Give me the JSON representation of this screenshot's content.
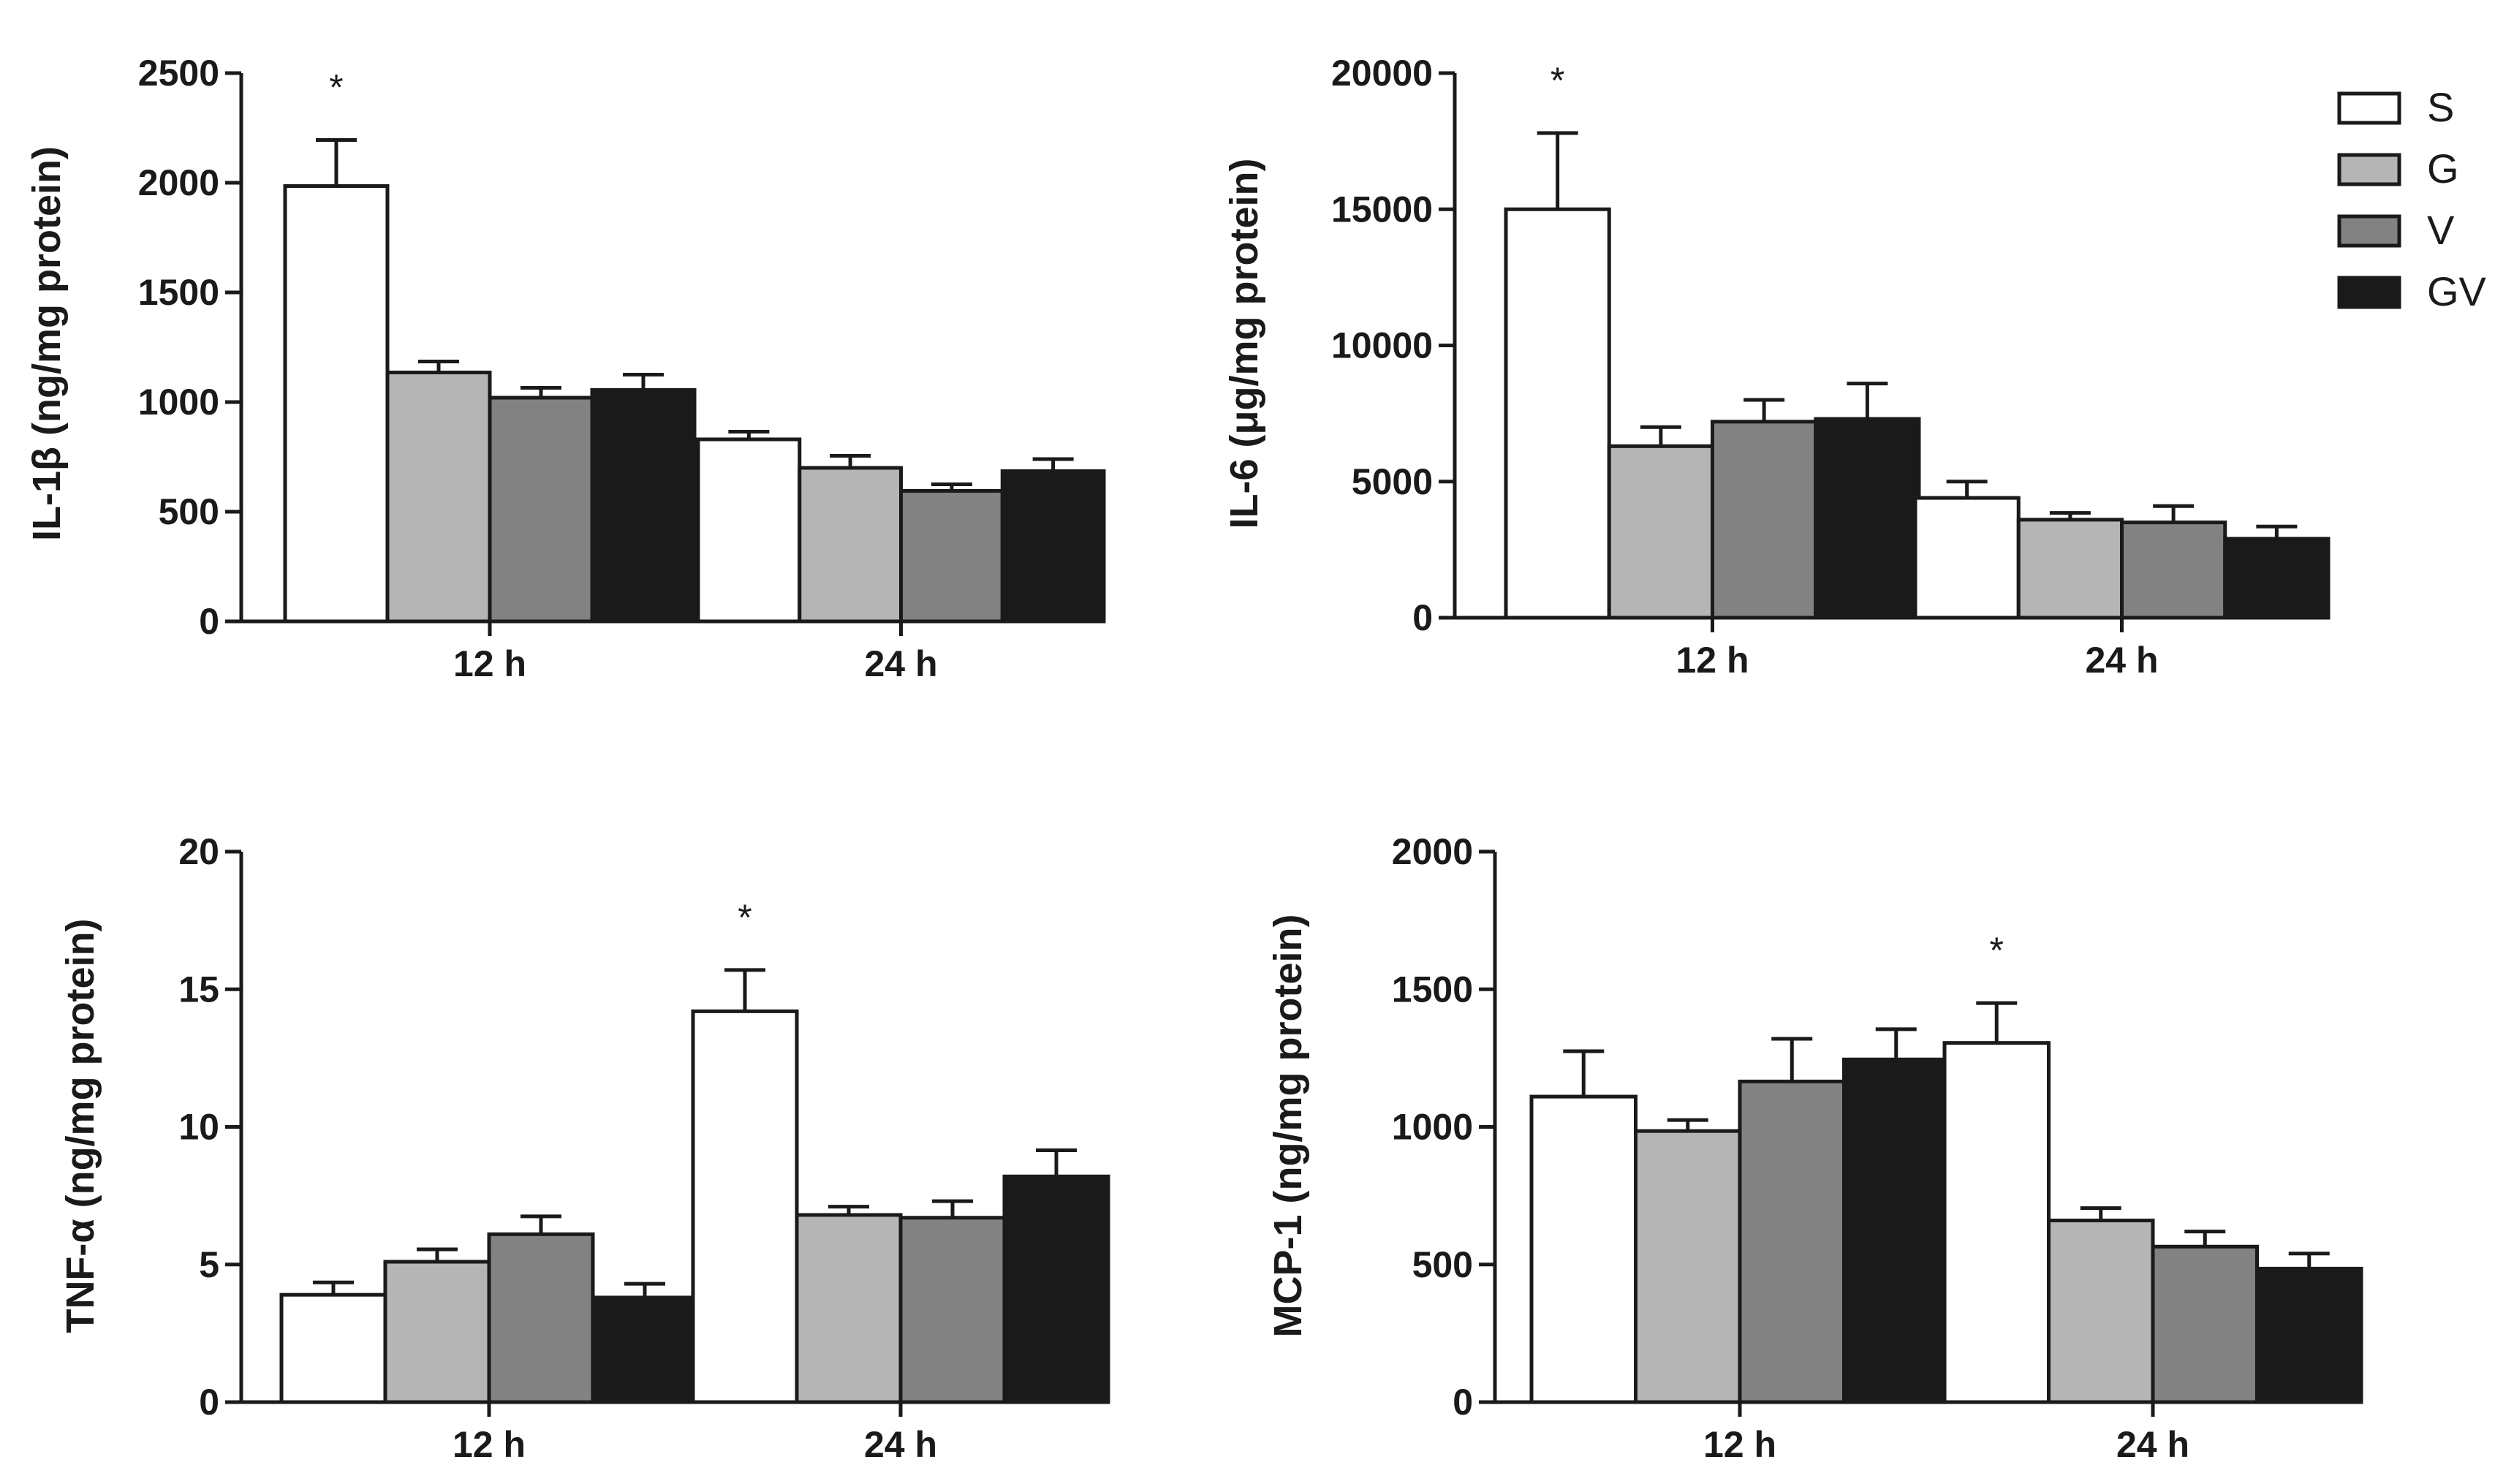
{
  "legend": {
    "entries": [
      {
        "label": "S",
        "color": "#ffffff"
      },
      {
        "label": "G",
        "color": "#b5b5b5"
      },
      {
        "label": "V",
        "color": "#828282"
      },
      {
        "label": "GV",
        "color": "#1a1a1a"
      }
    ]
  },
  "chart_data": [
    {
      "type": "bar",
      "ylabel": "IL-1β (ng/mg protein)",
      "categories": [
        "12 h",
        "24 h"
      ],
      "ylim": [
        0,
        2500
      ],
      "yticks": [
        0,
        500,
        1000,
        1500,
        2000,
        2500
      ],
      "series": [
        {
          "name": "S",
          "values": [
            1985,
            830
          ],
          "errors": [
            210,
            35
          ]
        },
        {
          "name": "G",
          "values": [
            1135,
            700
          ],
          "errors": [
            50,
            55
          ]
        },
        {
          "name": "V",
          "values": [
            1020,
            595
          ],
          "errors": [
            45,
            30
          ]
        },
        {
          "name": "GV",
          "values": [
            1055,
            685
          ],
          "errors": [
            70,
            55
          ]
        }
      ],
      "significance": [
        {
          "category": "12 h",
          "series": "S",
          "label": "*"
        }
      ]
    },
    {
      "type": "bar",
      "ylabel": "IL-6 (μg/mg protein)",
      "categories": [
        "12 h",
        "24 h"
      ],
      "ylim": [
        0,
        20000
      ],
      "yticks": [
        0,
        5000,
        10000,
        15000,
        20000
      ],
      "series": [
        {
          "name": "S",
          "values": [
            15000,
            4400
          ],
          "errors": [
            2800,
            600
          ]
        },
        {
          "name": "G",
          "values": [
            6300,
            3600
          ],
          "errors": [
            700,
            250
          ]
        },
        {
          "name": "V",
          "values": [
            7200,
            3500
          ],
          "errors": [
            800,
            600
          ]
        },
        {
          "name": "GV",
          "values": [
            7300,
            2900
          ],
          "errors": [
            1300,
            450
          ]
        }
      ],
      "significance": [
        {
          "category": "12 h",
          "series": "S",
          "label": "*"
        }
      ]
    },
    {
      "type": "bar",
      "ylabel": "TNF-α (ng/mg protein)",
      "categories": [
        "12 h",
        "24 h"
      ],
      "ylim": [
        0,
        20
      ],
      "yticks": [
        0,
        5,
        10,
        15,
        20
      ],
      "series": [
        {
          "name": "S",
          "values": [
            3.9,
            14.2
          ],
          "errors": [
            0.45,
            1.5
          ]
        },
        {
          "name": "G",
          "values": [
            5.1,
            6.8
          ],
          "errors": [
            0.45,
            0.3
          ]
        },
        {
          "name": "V",
          "values": [
            6.1,
            6.7
          ],
          "errors": [
            0.65,
            0.6
          ]
        },
        {
          "name": "GV",
          "values": [
            3.8,
            8.2
          ],
          "errors": [
            0.5,
            0.95
          ]
        }
      ],
      "significance": [
        {
          "category": "24 h",
          "series": "S",
          "label": "*"
        }
      ]
    },
    {
      "type": "bar",
      "ylabel": "MCP-1 (ng/mg protein)",
      "categories": [
        "12 h",
        "24 h"
      ],
      "ylim": [
        0,
        2000
      ],
      "yticks": [
        0,
        500,
        1000,
        1500,
        2000
      ],
      "series": [
        {
          "name": "S",
          "values": [
            1110,
            1305
          ],
          "errors": [
            165,
            145
          ]
        },
        {
          "name": "G",
          "values": [
            985,
            660
          ],
          "errors": [
            40,
            45
          ]
        },
        {
          "name": "V",
          "values": [
            1165,
            565
          ],
          "errors": [
            155,
            55
          ]
        },
        {
          "name": "GV",
          "values": [
            1245,
            485
          ],
          "errors": [
            110,
            55
          ]
        }
      ],
      "significance": [
        {
          "category": "24 h",
          "series": "S",
          "label": "*"
        }
      ]
    }
  ]
}
